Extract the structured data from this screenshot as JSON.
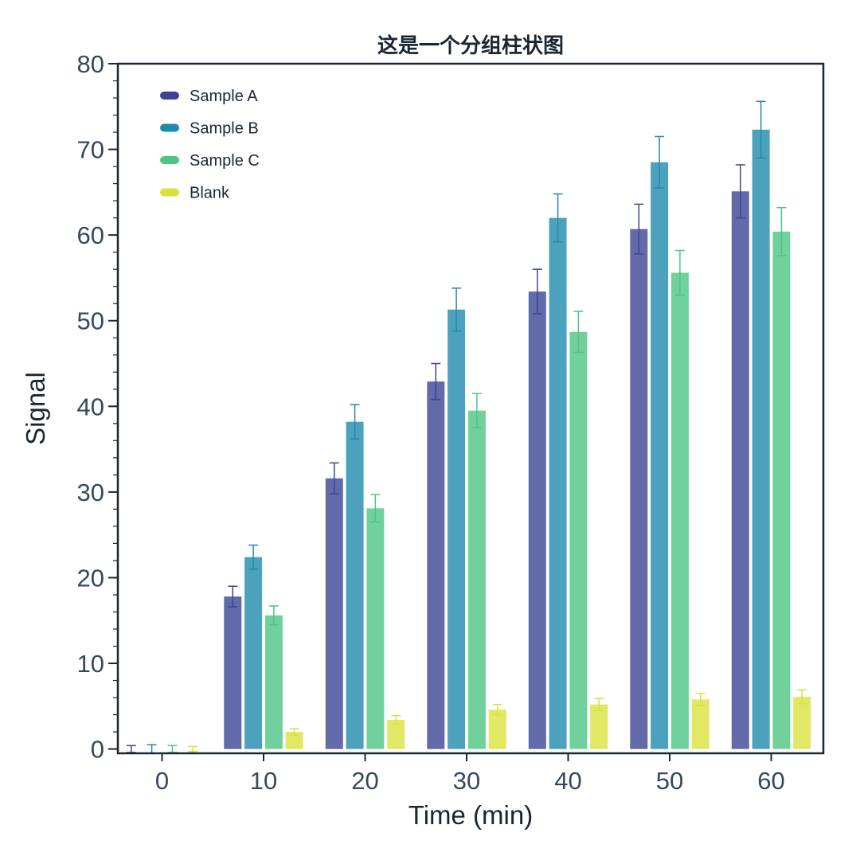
{
  "chart_data": {
    "type": "bar",
    "title": "这是一个分组柱状图",
    "xlabel": "Time (min)",
    "ylabel": "Signal",
    "categories": [
      "0",
      "10",
      "20",
      "30",
      "40",
      "50",
      "60"
    ],
    "ylim": [
      -0.5,
      80
    ],
    "yticks": [
      0,
      10,
      20,
      30,
      40,
      50,
      60,
      70,
      80
    ],
    "ytick_labels": [
      "0",
      "10",
      "20",
      "30",
      "40",
      "50",
      "60",
      "70",
      "80"
    ],
    "y_minor_step": 2,
    "grid": false,
    "legend_position": "top-left",
    "series": [
      {
        "name": "Sample A",
        "color": "#3b4594",
        "values": [
          0.0,
          17.8,
          31.6,
          42.9,
          53.4,
          60.7,
          65.1
        ],
        "errors": [
          0.4,
          1.2,
          1.8,
          2.1,
          2.6,
          2.9,
          3.1
        ]
      },
      {
        "name": "Sample B",
        "color": "#1f8bab",
        "values": [
          0.0,
          22.4,
          38.2,
          51.3,
          62.0,
          68.5,
          72.3
        ],
        "errors": [
          0.5,
          1.4,
          2.0,
          2.5,
          2.8,
          3.0,
          3.3
        ]
      },
      {
        "name": "Sample C",
        "color": "#4ec583",
        "values": [
          0.0,
          15.6,
          28.1,
          39.5,
          48.7,
          55.6,
          60.4
        ],
        "errors": [
          0.4,
          1.1,
          1.6,
          2.0,
          2.4,
          2.6,
          2.8
        ]
      },
      {
        "name": "Blank",
        "color": "#d8e23d",
        "values": [
          0.0,
          2.0,
          3.4,
          4.6,
          5.2,
          5.8,
          6.1
        ],
        "errors": [
          0.3,
          0.4,
          0.5,
          0.6,
          0.7,
          0.7,
          0.8
        ]
      }
    ]
  }
}
